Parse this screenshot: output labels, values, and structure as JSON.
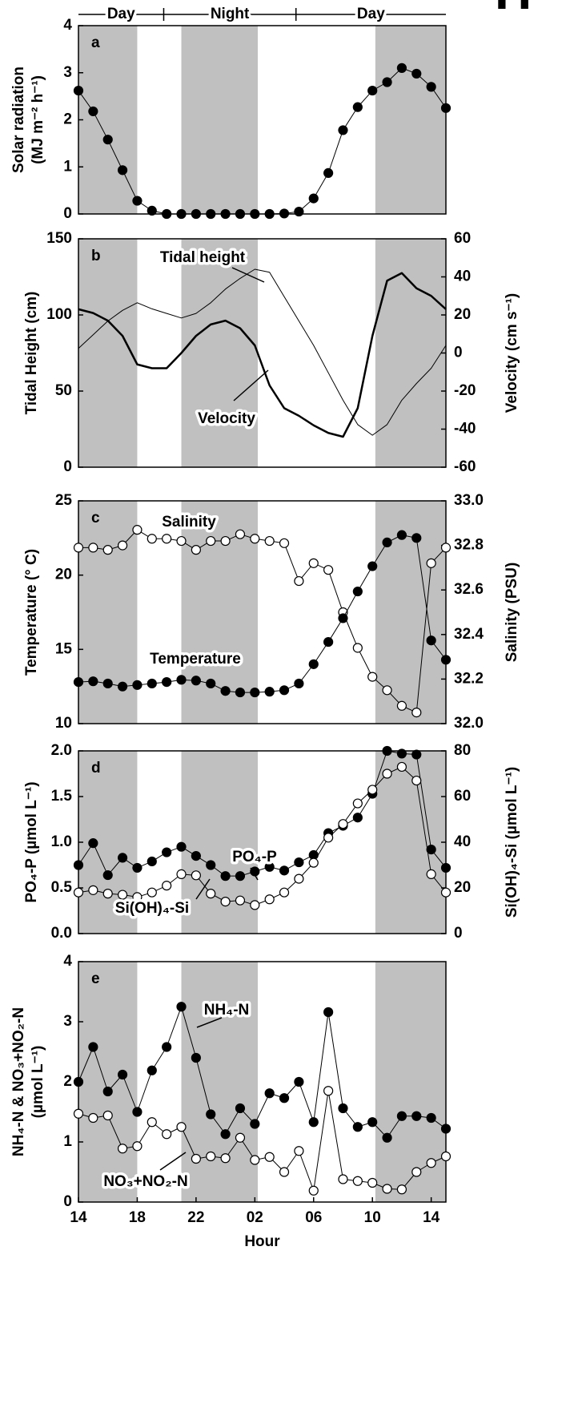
{
  "corner_label": "H",
  "period_labels": [
    "Day",
    "Night",
    "Day"
  ],
  "period_bounds": [
    19.8,
    28.8
  ],
  "shaded_hours": [
    [
      14,
      18
    ],
    [
      21,
      26.2
    ],
    [
      34.2,
      39
    ]
  ],
  "chart_data": [
    {
      "type": "line",
      "panel_label": "a",
      "ylabel": [
        "Solar radiation",
        "(MJ m⁻² h⁻¹)"
      ],
      "x": [
        14,
        15,
        16,
        17,
        18,
        19,
        20,
        21,
        22,
        23,
        24,
        25,
        26,
        27,
        28,
        29,
        30,
        31,
        32,
        33,
        34,
        35,
        36,
        37,
        38,
        39
      ],
      "xlim": [
        14,
        39
      ],
      "ylim": [
        0,
        4
      ],
      "yticks": [
        0,
        1,
        2,
        3,
        4
      ],
      "series": [
        {
          "name": null,
          "color": "#000000",
          "marker": "filled",
          "line_width": 1,
          "values": [
            2.62,
            2.18,
            1.58,
            0.93,
            0.28,
            0.07,
            0,
            0,
            0,
            0,
            0,
            0,
            0,
            0,
            0.01,
            0.05,
            0.33,
            0.87,
            1.78,
            2.27,
            2.62,
            2.8,
            3.1,
            2.98,
            2.7,
            2.25
          ]
        }
      ]
    },
    {
      "type": "line",
      "panel_label": "b",
      "ylabel": [
        "Tidal Height (cm)"
      ],
      "y2label": [
        "Velocity (cm s⁻¹)"
      ],
      "x": [
        14,
        15,
        16,
        17,
        18,
        19,
        20,
        21,
        22,
        23,
        24,
        25,
        26,
        27,
        28,
        29,
        30,
        31,
        32,
        33,
        34,
        35,
        36,
        37,
        38,
        39
      ],
      "xlim": [
        14,
        39
      ],
      "ylim": [
        0,
        150
      ],
      "yticks": [
        0,
        50,
        100,
        150
      ],
      "y2lim": [
        -60,
        60
      ],
      "y2ticks": [
        -60,
        -40,
        -20,
        0,
        20,
        40,
        60
      ],
      "series": [
        {
          "name": "Tidal height",
          "color": "#000000",
          "marker": "none",
          "line_width": 1,
          "values": [
            78,
            87,
            96,
            103,
            108,
            104,
            101,
            98,
            101,
            108,
            117,
            124,
            130,
            128,
            112,
            96,
            80,
            62,
            44,
            28,
            21,
            28,
            44,
            55,
            65,
            80
          ]
        },
        {
          "name": "Velocity",
          "color": "#000000",
          "marker": "none",
          "line_width": 2.5,
          "axis": "y2",
          "values": [
            23,
            21,
            17,
            9,
            -6,
            -8,
            -8,
            0,
            9,
            15,
            17,
            13,
            4,
            -17,
            -29,
            -33,
            -38,
            -42,
            -44,
            -29,
            9,
            38,
            42,
            34,
            30,
            23
          ]
        }
      ]
    },
    {
      "type": "line",
      "panel_label": "c",
      "ylabel": [
        "Temperature (° C)"
      ],
      "y2label": [
        "Salinity (PSU)"
      ],
      "x": [
        14,
        15,
        16,
        17,
        18,
        19,
        20,
        21,
        22,
        23,
        24,
        25,
        26,
        27,
        28,
        29,
        30,
        31,
        32,
        33,
        34,
        35,
        36,
        37,
        38,
        39
      ],
      "xlim": [
        14,
        39
      ],
      "ylim": [
        10,
        25
      ],
      "yticks": [
        10,
        15,
        20,
        25
      ],
      "y2lim": [
        32,
        33
      ],
      "y2ticks": [
        {
          "value": 32,
          "label": "32.0"
        },
        32.2,
        32.4,
        32.6,
        32.8,
        {
          "value": 33,
          "label": "33.0"
        }
      ],
      "series": [
        {
          "name": "Salinity",
          "color": "#000000",
          "marker": "open",
          "line_width": 1,
          "axis": "y2",
          "values": [
            32.79,
            32.79,
            32.78,
            32.8,
            32.87,
            32.83,
            32.83,
            32.82,
            32.78,
            32.82,
            32.82,
            32.85,
            32.83,
            32.82,
            32.81,
            32.64,
            32.72,
            32.69,
            32.5,
            32.34,
            32.21,
            32.15,
            32.08,
            32.05,
            32.72,
            32.79
          ]
        },
        {
          "name": "Temperature",
          "color": "#000000",
          "marker": "filled",
          "line_width": 1,
          "values": [
            12.8,
            12.85,
            12.7,
            12.5,
            12.6,
            12.7,
            12.8,
            12.95,
            12.9,
            12.7,
            12.2,
            12.1,
            12.1,
            12.15,
            12.25,
            12.7,
            14.0,
            15.5,
            17.1,
            18.9,
            20.6,
            22.2,
            22.7,
            22.5,
            15.6,
            14.3
          ]
        }
      ]
    },
    {
      "type": "line",
      "panel_label": "d",
      "ylabel": [
        "PO₄-P (µmol L⁻¹)"
      ],
      "y2label": [
        "Si(OH)₄-Si (µmol L⁻¹)"
      ],
      "x": [
        14,
        15,
        16,
        17,
        18,
        19,
        20,
        21,
        22,
        23,
        24,
        25,
        26,
        27,
        28,
        29,
        30,
        31,
        32,
        33,
        34,
        35,
        36,
        37,
        38,
        39
      ],
      "xlim": [
        14,
        39
      ],
      "ylim": [
        0,
        2
      ],
      "yticks": [
        {
          "value": 0,
          "label": "0.0"
        },
        0.5,
        {
          "value": 1,
          "label": "1.0"
        },
        1.5,
        {
          "value": 2,
          "label": "2.0"
        }
      ],
      "y2lim": [
        0,
        80
      ],
      "y2ticks": [
        0,
        20,
        40,
        60,
        80
      ],
      "series": [
        {
          "name": "PO₄-P",
          "color": "#000000",
          "marker": "filled",
          "line_width": 1,
          "values": [
            0.75,
            0.99,
            0.64,
            0.83,
            0.72,
            0.79,
            0.89,
            0.95,
            0.85,
            0.75,
            0.63,
            0.63,
            0.68,
            0.73,
            0.69,
            0.78,
            0.86,
            1.1,
            1.18,
            1.27,
            1.53,
            2.0,
            1.97,
            1.96,
            0.92,
            0.72
          ]
        },
        {
          "name": "Si(OH)₄-Si",
          "color": "#000000",
          "marker": "open",
          "line_width": 1,
          "axis": "y2",
          "values": [
            18,
            19,
            17.5,
            17,
            16,
            18,
            21,
            26,
            25.5,
            17.5,
            14,
            14.5,
            12.5,
            15,
            18,
            24,
            31,
            42,
            48,
            57,
            63,
            70,
            73,
            67,
            26,
            18
          ]
        }
      ]
    },
    {
      "type": "line",
      "panel_label": "e",
      "ylabel": [
        "NH₄-N & NO₃+NO₂-N",
        "(µmol L⁻¹)"
      ],
      "xlabel": "Hour",
      "x": [
        14,
        15,
        16,
        17,
        18,
        19,
        20,
        21,
        22,
        23,
        24,
        25,
        26,
        27,
        28,
        29,
        30,
        31,
        32,
        33,
        34,
        35,
        36,
        37,
        38,
        39
      ],
      "xlim": [
        14,
        39
      ],
      "xticks": [
        14,
        18,
        22,
        {
          "value": 26,
          "label": "02"
        },
        {
          "value": 30,
          "label": "06"
        },
        {
          "value": 34,
          "label": "10"
        },
        {
          "value": 38,
          "label": "14"
        }
      ],
      "ylim": [
        0,
        4
      ],
      "yticks": [
        0,
        1,
        2,
        3,
        4
      ],
      "series": [
        {
          "name": "NH₄-N",
          "color": "#000000",
          "marker": "filled",
          "line_width": 1,
          "values": [
            2.0,
            2.58,
            1.84,
            2.12,
            1.5,
            2.19,
            2.58,
            3.25,
            2.4,
            1.46,
            1.13,
            1.56,
            1.3,
            1.81,
            1.73,
            2.0,
            1.33,
            3.16,
            1.56,
            1.25,
            1.33,
            1.07,
            1.43,
            1.43,
            1.4,
            1.22
          ]
        },
        {
          "name": "NO₃+NO₂-N",
          "color": "#000000",
          "marker": "open",
          "line_width": 1,
          "values": [
            1.47,
            1.4,
            1.44,
            0.89,
            0.93,
            1.33,
            1.13,
            1.25,
            0.72,
            0.76,
            0.73,
            1.07,
            0.7,
            0.75,
            0.5,
            0.85,
            0.19,
            1.85,
            0.38,
            0.35,
            0.32,
            0.22,
            0.21,
            0.5,
            0.65,
            0.76
          ]
        }
      ]
    }
  ]
}
